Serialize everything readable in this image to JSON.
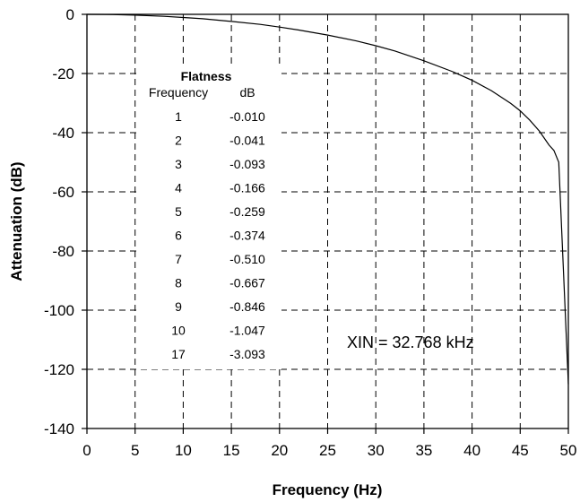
{
  "chart_data": {
    "type": "line",
    "xlabel": "Frequency (Hz)",
    "ylabel": "Attenuation (dB)",
    "xlim": [
      0,
      50
    ],
    "ylim": [
      -140,
      0
    ],
    "xticks": [
      "0",
      "5",
      "10",
      "15",
      "20",
      "25",
      "30",
      "35",
      "40",
      "45",
      "50"
    ],
    "yticks": [
      "0",
      "-20",
      "-40",
      "-60",
      "-80",
      "-100",
      "-120",
      "-140"
    ],
    "grid": true,
    "series": [
      {
        "x": [
          0,
          2,
          5,
          8,
          10,
          12,
          15,
          18,
          20,
          22,
          25,
          28,
          30,
          32,
          35,
          38,
          40,
          42,
          44,
          45,
          46,
          47,
          48,
          48.5,
          49,
          50
        ],
        "y": [
          0,
          -0.04,
          -0.26,
          -0.67,
          -1.05,
          -1.5,
          -2.4,
          -3.4,
          -4.3,
          -5.3,
          -7.0,
          -9.0,
          -10.6,
          -12.4,
          -15.7,
          -19.4,
          -22.3,
          -25.8,
          -30.1,
          -32.6,
          -35.8,
          -39.5,
          -44.2,
          -46.0,
          -50.0,
          -125.0
        ],
        "color": "#000000"
      }
    ],
    "annotations": [
      {
        "text": "XIN = 32.768 kHz",
        "x": 40,
        "y": -110
      }
    ],
    "table": {
      "title": "Flatness",
      "headers": [
        "Frequency",
        "dB"
      ],
      "rows": [
        [
          "1",
          "-0.010"
        ],
        [
          "2",
          "-0.041"
        ],
        [
          "3",
          "-0.093"
        ],
        [
          "4",
          "-0.166"
        ],
        [
          "5",
          "-0.259"
        ],
        [
          "6",
          "-0.374"
        ],
        [
          "7",
          "-0.510"
        ],
        [
          "8",
          "-0.667"
        ],
        [
          "9",
          "-0.846"
        ],
        [
          "10",
          "-1.047"
        ],
        [
          "17",
          "-3.093"
        ]
      ]
    }
  }
}
